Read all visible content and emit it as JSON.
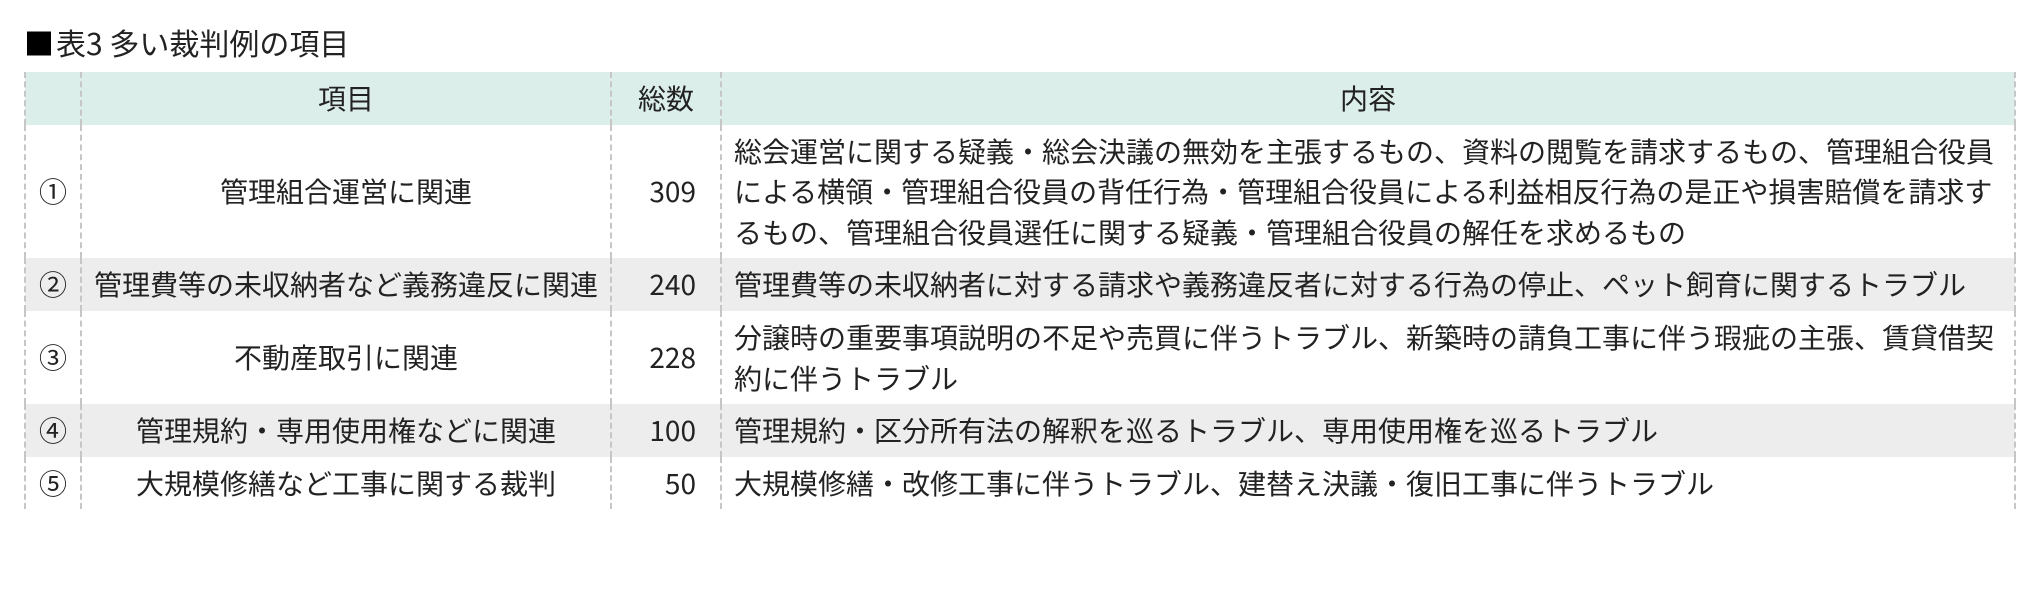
{
  "table": {
    "title_prefix": "■",
    "title": "表3  多い裁判例の項目",
    "columns": {
      "num": "",
      "item": "項目",
      "count": "総数",
      "desc": "内容"
    },
    "header_bg": "#dceeea",
    "row_shade_bg": "#ededed",
    "border_color": "#c6c6c6",
    "text_color": "#222222",
    "font_size_pt": 21,
    "rows": [
      {
        "num": "①",
        "item": "管理組合運営に関連",
        "count": "309",
        "desc": "総会運営に関する疑義・総会決議の無効を主張するもの、資料の閲覧を請求するもの、管理組合役員による横領・管理組合役員の背任行為・管理組合役員による利益相反行為の是正や損害賠償を請求するもの、管理組合役員選任に関する疑義・管理組合役員の解任を求めるもの",
        "shade": false
      },
      {
        "num": "②",
        "item": "管理費等の未収納者など義務違反に関連",
        "count": "240",
        "desc": "管理費等の未収納者に対する請求や義務違反者に対する行為の停止、ペット飼育に関するトラブル",
        "shade": true
      },
      {
        "num": "③",
        "item": "不動産取引に関連",
        "count": "228",
        "desc": "分譲時の重要事項説明の不足や売買に伴うトラブル、新築時の請負工事に伴う瑕疵の主張、賃貸借契約に伴うトラブル",
        "shade": false
      },
      {
        "num": "④",
        "item": "管理規約・専用使用権などに関連",
        "count": "100",
        "desc": "管理規約・区分所有法の解釈を巡るトラブル、専用使用権を巡るトラブル",
        "shade": true
      },
      {
        "num": "⑤",
        "item": "大規模修繕など工事に関する裁判",
        "count": "50",
        "desc": "大規模修繕・改修工事に伴うトラブル、建替え決議・復旧工事に伴うトラブル",
        "shade": false
      }
    ]
  }
}
